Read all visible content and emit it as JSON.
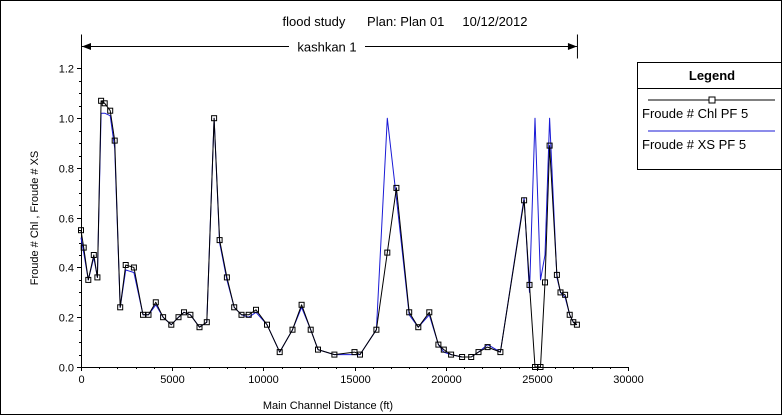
{
  "chart_data": {
    "type": "line",
    "title": "flood study      Plan: Plan 01     10/12/2012",
    "reach_label": "kashkan 1",
    "reach_extent": [
      0,
      27200
    ],
    "xlabel": "Main Channel Distance (ft)",
    "ylabel": "Froude # Chl , Froude # XS",
    "xlim": [
      0,
      30000
    ],
    "ylim": [
      0,
      1.25
    ],
    "xticks": [
      "0",
      "5000",
      "10000",
      "15000",
      "20000",
      "25000",
      "30000"
    ],
    "xtick_values": [
      0,
      5000,
      10000,
      15000,
      20000,
      25000,
      30000
    ],
    "yticks": [
      "0.0",
      "0.2",
      "0.4",
      "0.6",
      "0.8",
      "1.0",
      "1.2"
    ],
    "ytick_values": [
      0,
      0.2,
      0.4,
      0.6,
      0.8,
      1.0,
      1.2
    ],
    "grid": false,
    "legend": {
      "title": "Legend",
      "placement": "right",
      "entries": [
        "Froude # Chl PF 5",
        "Froude # XS PF 5"
      ]
    },
    "series": [
      {
        "name": "Froude # Chl PF 5",
        "color": "#000000",
        "marker": "square",
        "x": [
          0,
          150,
          400,
          700,
          900,
          1100,
          1300,
          1600,
          1850,
          2150,
          2450,
          2900,
          3400,
          3700,
          4100,
          4500,
          4950,
          5350,
          5650,
          6000,
          6500,
          6900,
          7300,
          7600,
          8000,
          8400,
          8800,
          9200,
          9600,
          10200,
          10900,
          11600,
          12100,
          12600,
          13000,
          13900,
          15000,
          15300,
          16200,
          16800,
          17300,
          18000,
          18500,
          19100,
          19600,
          19900,
          20300,
          20900,
          21400,
          21800,
          22300,
          23000,
          24300,
          24600,
          24900,
          25200,
          25450,
          25700,
          26100,
          26300,
          26550,
          26800,
          27000,
          27200
        ],
        "values": [
          0.55,
          0.48,
          0.35,
          0.45,
          0.36,
          1.07,
          1.06,
          1.03,
          0.91,
          0.24,
          0.41,
          0.4,
          0.21,
          0.21,
          0.26,
          0.2,
          0.17,
          0.2,
          0.22,
          0.21,
          0.16,
          0.18,
          1.0,
          0.51,
          0.36,
          0.24,
          0.21,
          0.21,
          0.23,
          0.17,
          0.06,
          0.15,
          0.25,
          0.15,
          0.07,
          0.05,
          0.06,
          0.05,
          0.15,
          0.46,
          0.72,
          0.22,
          0.16,
          0.22,
          0.09,
          0.07,
          0.05,
          0.04,
          0.04,
          0.06,
          0.08,
          0.06,
          0.67,
          0.33,
          0.0,
          0.0,
          0.34,
          0.89,
          0.37,
          0.3,
          0.29,
          0.21,
          0.18,
          0.17
        ]
      },
      {
        "name": "Froude # XS PF 5",
        "color": "#1a1ad6",
        "marker": "none",
        "x": [
          0,
          150,
          400,
          700,
          900,
          1100,
          1300,
          1600,
          1850,
          2150,
          2450,
          2900,
          3400,
          3700,
          4100,
          4500,
          4950,
          5350,
          5650,
          6000,
          6500,
          6900,
          7300,
          7600,
          8000,
          8400,
          8800,
          9200,
          9600,
          10200,
          10900,
          11600,
          12100,
          12600,
          13000,
          13900,
          15000,
          15300,
          16200,
          16800,
          17300,
          18000,
          18500,
          19100,
          19600,
          19900,
          20300,
          20900,
          21400,
          21800,
          22300,
          23000,
          24300,
          24600,
          24900,
          25200,
          25450,
          25700,
          26100,
          26300,
          26550,
          26800,
          27000,
          27200
        ],
        "values": [
          0.52,
          0.46,
          0.35,
          0.44,
          0.36,
          1.02,
          1.02,
          1.01,
          0.88,
          0.24,
          0.39,
          0.38,
          0.21,
          0.21,
          0.25,
          0.2,
          0.17,
          0.2,
          0.22,
          0.21,
          0.16,
          0.18,
          1.0,
          0.5,
          0.35,
          0.24,
          0.21,
          0.2,
          0.22,
          0.17,
          0.06,
          0.15,
          0.24,
          0.15,
          0.07,
          0.05,
          0.05,
          0.05,
          0.15,
          1.0,
          0.68,
          0.21,
          0.16,
          0.21,
          0.09,
          0.06,
          0.05,
          0.04,
          0.04,
          0.06,
          0.09,
          0.06,
          0.68,
          0.3,
          1.0,
          0.35,
          0.45,
          1.0,
          0.36,
          0.3,
          0.28,
          0.21,
          0.18,
          0.17
        ]
      }
    ]
  }
}
